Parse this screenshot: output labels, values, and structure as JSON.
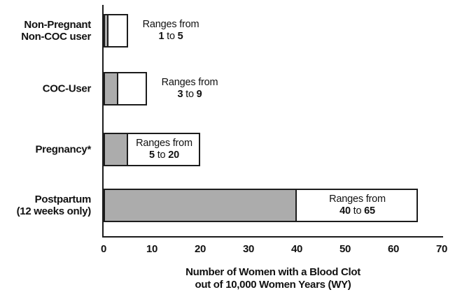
{
  "chart_data": {
    "type": "bar",
    "orientation": "horizontal",
    "title": "",
    "xlabel_line1": "Number of Women with a Blood Clot",
    "xlabel_line2": "out of 10,000 Women Years (WY)",
    "xlim": [
      0,
      70
    ],
    "x_ticks": [
      0,
      10,
      20,
      30,
      40,
      50,
      60,
      70
    ],
    "grid": false,
    "legend": "none",
    "categories": [
      "Non-Pregnant Non-COC user",
      "COC-User",
      "Pregnancy*",
      "Postpartum (12 weeks only)"
    ],
    "series": [
      {
        "name": "range low",
        "values": [
          1,
          3,
          5,
          40
        ]
      },
      {
        "name": "range high",
        "values": [
          5,
          9,
          20,
          65
        ]
      }
    ],
    "annotation_prefix": "Ranges from",
    "annotation_connector": "to",
    "rows": [
      {
        "label_lines": [
          "Non-Pregnant",
          "Non-COC user"
        ],
        "low": 1,
        "high": 5,
        "annotation_position": "right"
      },
      {
        "label_lines": [
          "COC-User"
        ],
        "low": 3,
        "high": 9,
        "annotation_position": "right"
      },
      {
        "label_lines": [
          "Pregnancy*"
        ],
        "low": 5,
        "high": 20,
        "annotation_position": "inside"
      },
      {
        "label_lines": [
          "Postpartum",
          "(12 weeks only)"
        ],
        "low": 40,
        "high": 65,
        "annotation_position": "inside"
      }
    ],
    "colors": {
      "low_segment_fill": "#ACACAC",
      "range_segment_fill": "#FFFFFF",
      "border": "#1C1C1C",
      "text": "#111111",
      "background": "#FFFFFF"
    }
  }
}
